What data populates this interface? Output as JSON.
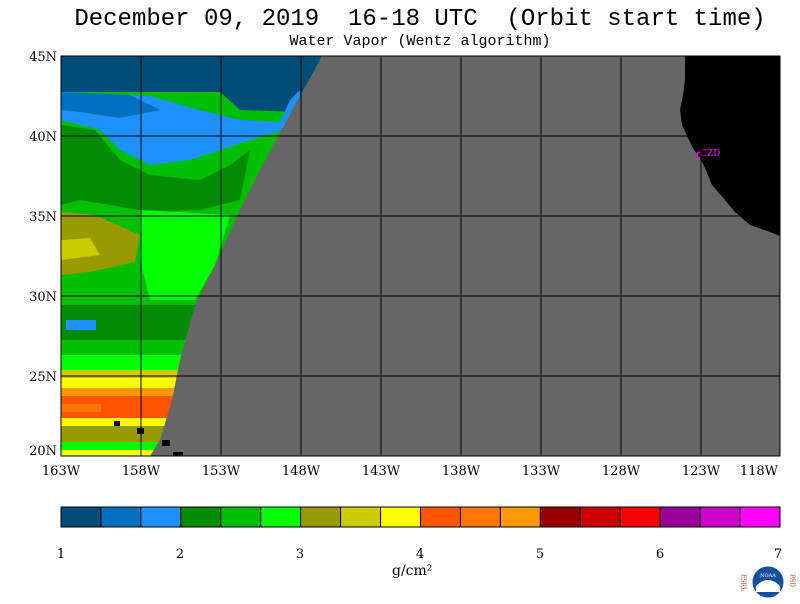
{
  "header": {
    "title": "December 09, 2019  16-18 UTC  (Orbit start time)",
    "subtitle": "Water Vapor (Wentz algorithm)"
  },
  "map": {
    "lat_labels": [
      "45N",
      "40N",
      "35N",
      "30N",
      "25N",
      "20N"
    ],
    "lon_labels": [
      "163W",
      "158W",
      "153W",
      "148W",
      "143W",
      "138W",
      "133W",
      "128W",
      "123W",
      "118W"
    ],
    "station_label": "CZD",
    "nodata_color": "#666666",
    "land_color": "#000000"
  },
  "colorbar": {
    "ticks": [
      "1",
      "2",
      "3",
      "4",
      "5",
      "6",
      "7"
    ],
    "units": "g/cm²",
    "colors": [
      "#004d7a",
      "#0070c0",
      "#1e90ff",
      "#008c00",
      "#00bf00",
      "#00ff00",
      "#999900",
      "#cccc00",
      "#ffff00",
      "#ff5500",
      "#ff7700",
      "#ff9900",
      "#990000",
      "#cc0000",
      "#ff0000",
      "#990099",
      "#cc00cc",
      "#ff00ff"
    ]
  },
  "logo": {
    "left_letters": "ESRL",
    "right_letters": "PSD",
    "center": "NOAA"
  }
}
